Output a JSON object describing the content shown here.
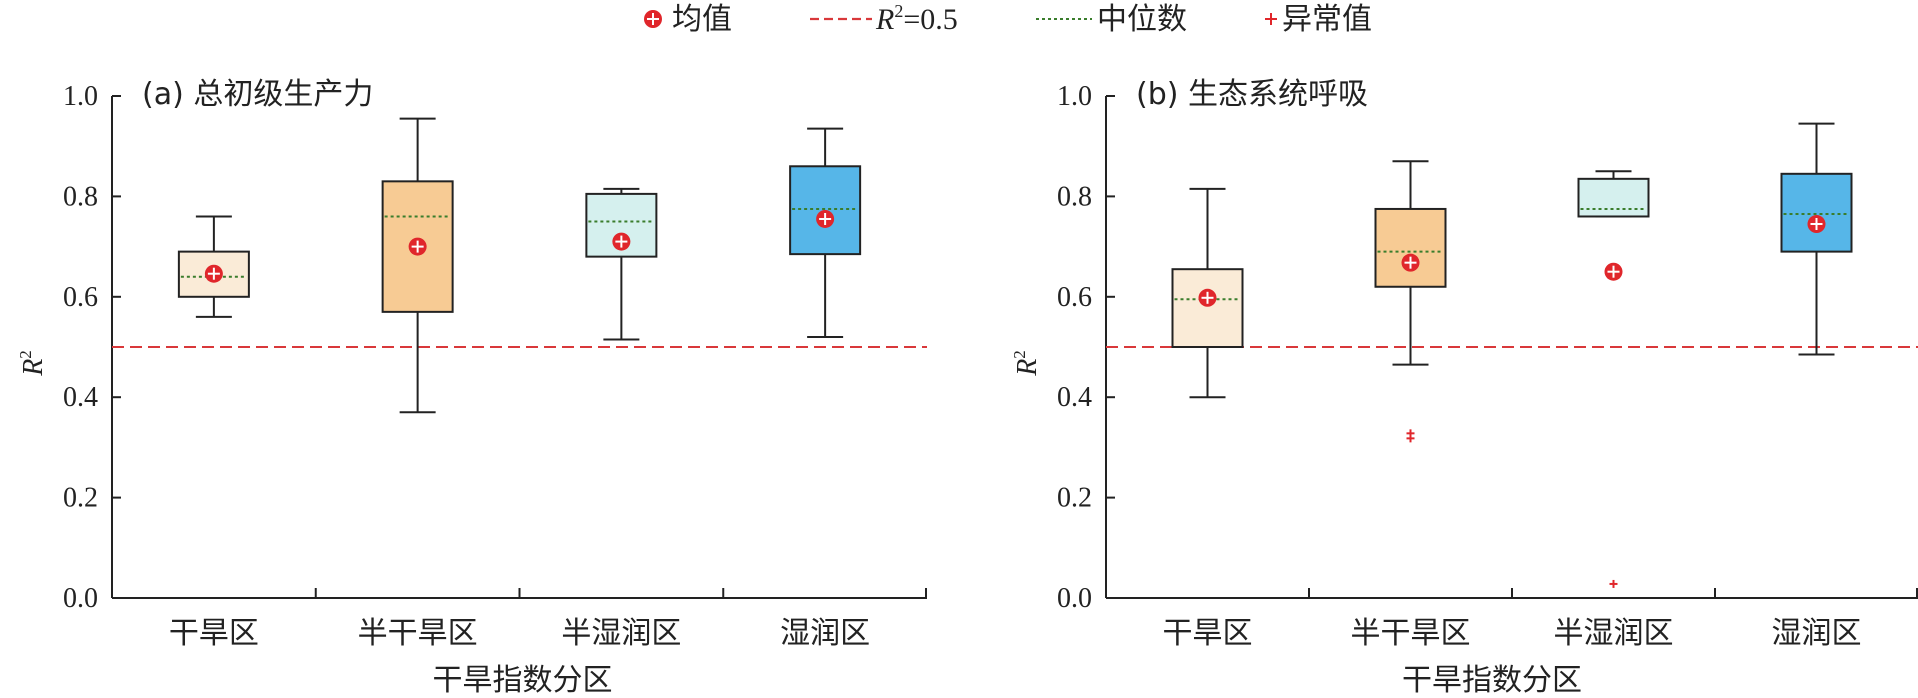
{
  "legend": {
    "mean": "均值",
    "r2_label": "R",
    "r2_sup": "2",
    "r2_value": "=0.5",
    "median": "中位数",
    "outlier": "异常值"
  },
  "colors": {
    "ref_line": "#d9383a",
    "median_line": "#3a7d2c",
    "mean_marker": "#e0262b",
    "outlier": "#e0262b",
    "box_edge": "#222222",
    "arid": "#faebd7",
    "semi_arid": "#f7cb94",
    "semi_humid": "#d5f0ee",
    "humid": "#56b6e8"
  },
  "chart_data": [
    {
      "type": "box",
      "title": "(a) 总初级生产力",
      "xlabel": "干旱指数分区",
      "ylabel": "R",
      "ylabel_sup": "2",
      "ylim": [
        0,
        1.0
      ],
      "yticks": [
        "0.0",
        "0.2",
        "0.4",
        "0.6",
        "0.8",
        "1.0"
      ],
      "reference_line": 0.5,
      "categories": [
        "干旱区",
        "半干旱区",
        "半湿润区",
        "湿润区"
      ],
      "boxes": [
        {
          "whisker_low": 0.56,
          "q1": 0.6,
          "median": 0.64,
          "q3": 0.69,
          "whisker_high": 0.76,
          "mean": 0.646,
          "outliers": [],
          "color_key": "arid"
        },
        {
          "whisker_low": 0.37,
          "q1": 0.57,
          "median": 0.76,
          "q3": 0.83,
          "whisker_high": 0.955,
          "mean": 0.7,
          "outliers": [],
          "color_key": "semi_arid"
        },
        {
          "whisker_low": 0.515,
          "q1": 0.68,
          "median": 0.75,
          "q3": 0.805,
          "whisker_high": 0.815,
          "mean": 0.71,
          "outliers": [],
          "color_key": "semi_humid"
        },
        {
          "whisker_low": 0.52,
          "q1": 0.685,
          "median": 0.775,
          "q3": 0.86,
          "whisker_high": 0.935,
          "mean": 0.755,
          "outliers": [],
          "color_key": "humid"
        }
      ]
    },
    {
      "type": "box",
      "title": "(b) 生态系统呼吸",
      "xlabel": "干旱指数分区",
      "ylabel": "R",
      "ylabel_sup": "2",
      "ylim": [
        0,
        1.0
      ],
      "yticks": [
        "0.0",
        "0.2",
        "0.4",
        "0.6",
        "0.8",
        "1.0"
      ],
      "reference_line": 0.5,
      "categories": [
        "干旱区",
        "半干旱区",
        "半湿润区",
        "湿润区"
      ],
      "boxes": [
        {
          "whisker_low": 0.4,
          "q1": 0.5,
          "median": 0.595,
          "q3": 0.655,
          "whisker_high": 0.815,
          "mean": 0.598,
          "outliers": [],
          "color_key": "arid"
        },
        {
          "whisker_low": 0.465,
          "q1": 0.62,
          "median": 0.69,
          "q3": 0.775,
          "whisker_high": 0.87,
          "mean": 0.668,
          "outliers": [
            0.328,
            0.318
          ],
          "color_key": "semi_arid"
        },
        {
          "whisker_low": 0.76,
          "q1": 0.76,
          "median": 0.775,
          "q3": 0.835,
          "whisker_high": 0.85,
          "mean": 0.65,
          "outliers": [
            0.028
          ],
          "color_key": "semi_humid"
        },
        {
          "whisker_low": 0.485,
          "q1": 0.69,
          "median": 0.765,
          "q3": 0.845,
          "whisker_high": 0.945,
          "mean": 0.745,
          "outliers": [],
          "color_key": "humid"
        }
      ]
    }
  ]
}
